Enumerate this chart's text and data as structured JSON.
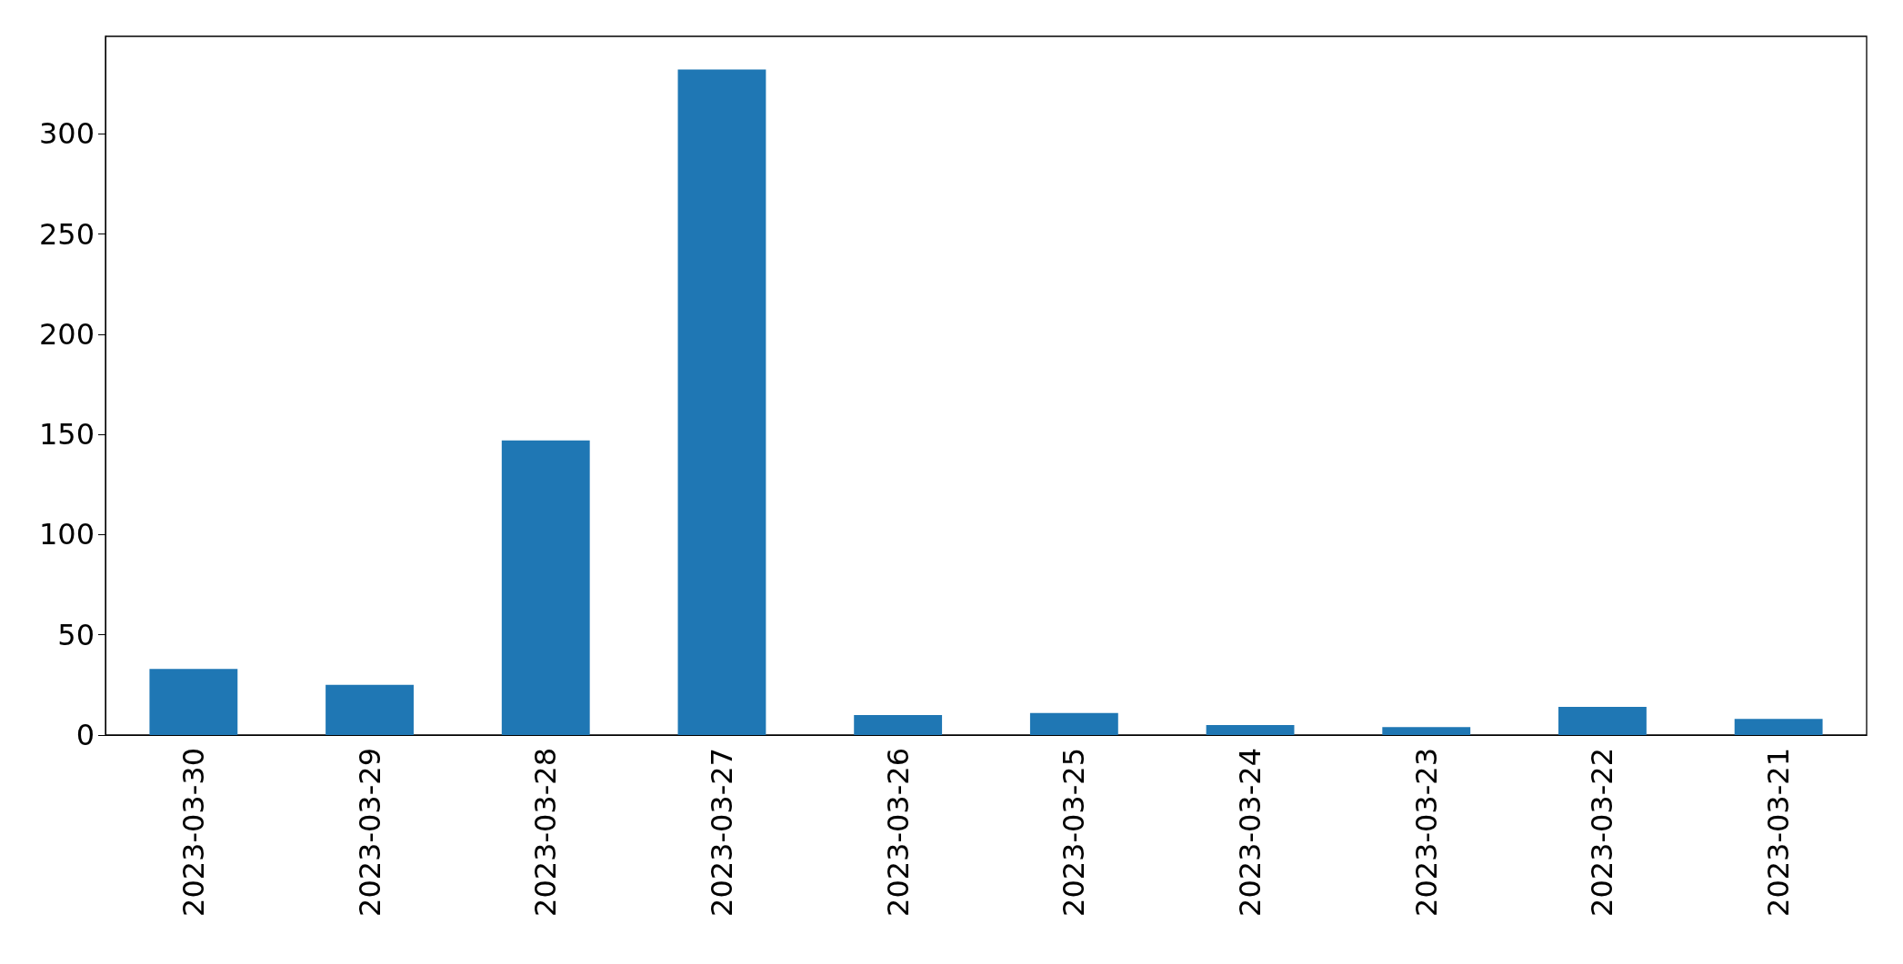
{
  "chart_data": {
    "type": "bar",
    "categories": [
      "2023-03-30",
      "2023-03-29",
      "2023-03-28",
      "2023-03-27",
      "2023-03-26",
      "2023-03-25",
      "2023-03-24",
      "2023-03-23",
      "2023-03-22",
      "2023-03-21"
    ],
    "values": [
      33,
      25,
      147,
      332,
      10,
      11,
      5,
      4,
      14,
      8
    ],
    "color": "#1f77b4",
    "ylim": [
      0,
      348.6
    ],
    "yticks": [
      0,
      50,
      100,
      150,
      200,
      250,
      300
    ],
    "grid": false
  }
}
